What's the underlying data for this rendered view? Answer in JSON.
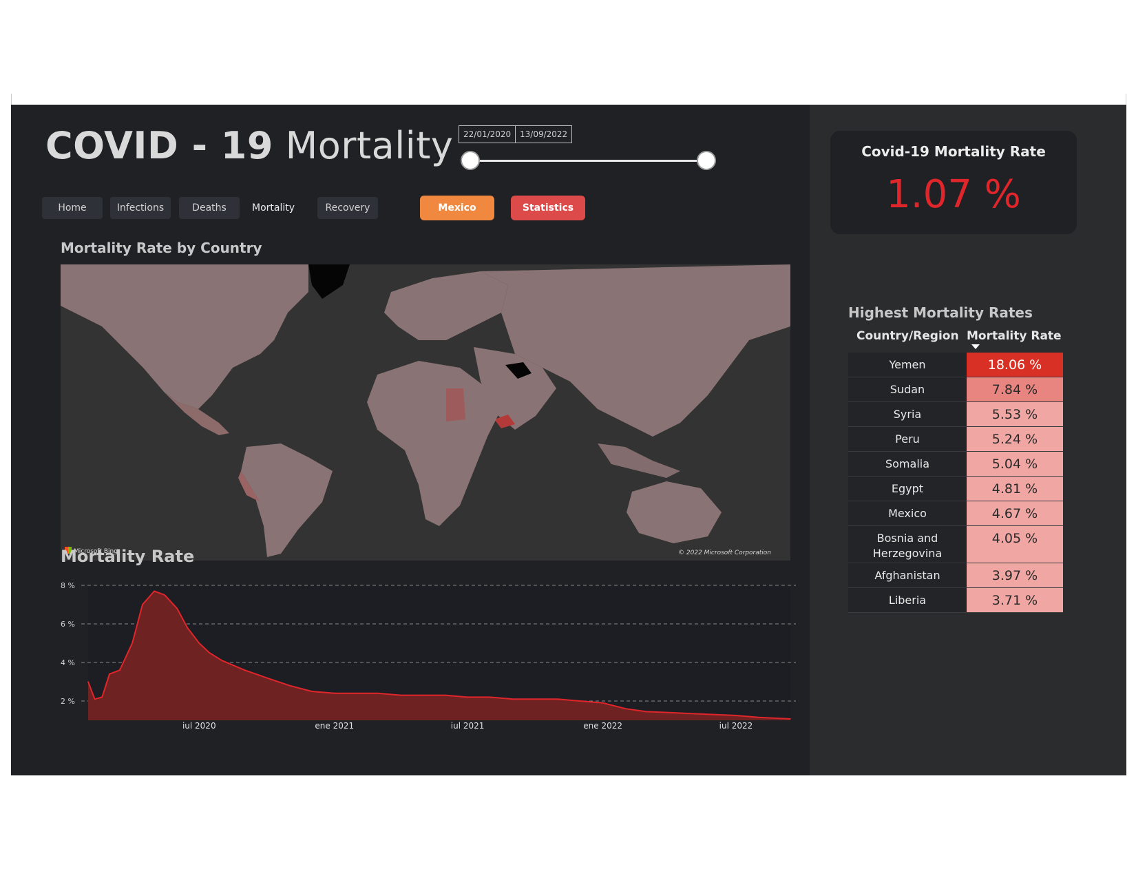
{
  "header": {
    "title_bold": "COVID - 19",
    "title_light": "Mortality",
    "date_start": "22/01/2020",
    "date_end": "13/09/2022"
  },
  "nav": {
    "items": [
      {
        "label": "Home"
      },
      {
        "label": "Infections"
      },
      {
        "label": "Deaths"
      },
      {
        "label": "Mortality"
      },
      {
        "label": "Recovery"
      }
    ]
  },
  "actions": {
    "mexico_label": "Mexico",
    "statistics_label": "Statistics"
  },
  "map": {
    "title": "Mortality Rate by Country",
    "provider": "Microsoft Bing",
    "copyright": "© 2022 Microsoft Corporation"
  },
  "kpi": {
    "label": "Covid-19 Mortality Rate",
    "value": "1.07 %"
  },
  "table": {
    "title": "Highest Mortality Rates",
    "col_country": "Country/Region",
    "col_rate": "Mortality Rate",
    "rows": [
      {
        "country": "Yemen",
        "rate": "18.06 %",
        "value": 18.06
      },
      {
        "country": "Sudan",
        "rate": "7.84 %",
        "value": 7.84
      },
      {
        "country": "Syria",
        "rate": "5.53 %",
        "value": 5.53
      },
      {
        "country": "Peru",
        "rate": "5.24 %",
        "value": 5.24
      },
      {
        "country": "Somalia",
        "rate": "5.04 %",
        "value": 5.04
      },
      {
        "country": "Egypt",
        "rate": "4.81 %",
        "value": 4.81
      },
      {
        "country": "Mexico",
        "rate": "4.67 %",
        "value": 4.67
      },
      {
        "country": "Bosnia and Herzegovina",
        "rate": "4.05 %",
        "value": 4.05
      },
      {
        "country": "Afghanistan",
        "rate": "3.97 %",
        "value": 3.97
      },
      {
        "country": "Liberia",
        "rate": "3.71 %",
        "value": 3.71
      }
    ]
  },
  "colors": {
    "accent_red": "#e0262b",
    "mexico_button": "#f0893f",
    "statistics_button": "#dc4a49",
    "rate_high": "#d93025",
    "rate_mid": "#e98580",
    "rate_low": "#f0a7a3"
  },
  "chart_data": {
    "type": "area",
    "title": "Mortality Rate",
    "xlabel": "",
    "ylabel": "",
    "x_ticks": [
      "jul 2020",
      "ene 2021",
      "jul 2021",
      "ene 2022",
      "jul 2022"
    ],
    "y_ticks": [
      "2 %",
      "4 %",
      "6 %",
      "8 %"
    ],
    "ylim": [
      1,
      8
    ],
    "x": [
      "2020-02-01",
      "2020-02-10",
      "2020-02-20",
      "2020-03-01",
      "2020-03-15",
      "2020-04-01",
      "2020-04-15",
      "2020-05-01",
      "2020-05-15",
      "2020-06-01",
      "2020-06-15",
      "2020-07-01",
      "2020-07-15",
      "2020-08-01",
      "2020-09-01",
      "2020-10-01",
      "2020-11-01",
      "2020-12-01",
      "2021-01-01",
      "2021-02-01",
      "2021-03-01",
      "2021-04-01",
      "2021-05-01",
      "2021-06-01",
      "2021-07-01",
      "2021-08-01",
      "2021-09-01",
      "2021-10-01",
      "2021-11-01",
      "2021-12-01",
      "2022-01-01",
      "2022-02-01",
      "2022-03-01",
      "2022-04-01",
      "2022-05-01",
      "2022-06-01",
      "2022-07-01",
      "2022-08-01",
      "2022-09-13"
    ],
    "series": [
      {
        "values": [
          3.0,
          2.1,
          2.2,
          3.4,
          3.6,
          5.0,
          7.0,
          7.7,
          7.5,
          6.8,
          5.8,
          5.0,
          4.5,
          4.1,
          3.6,
          3.2,
          2.8,
          2.5,
          2.4,
          2.4,
          2.4,
          2.3,
          2.3,
          2.3,
          2.2,
          2.2,
          2.1,
          2.1,
          2.1,
          2.0,
          1.9,
          1.6,
          1.45,
          1.4,
          1.35,
          1.3,
          1.25,
          1.15,
          1.07
        ]
      }
    ]
  }
}
